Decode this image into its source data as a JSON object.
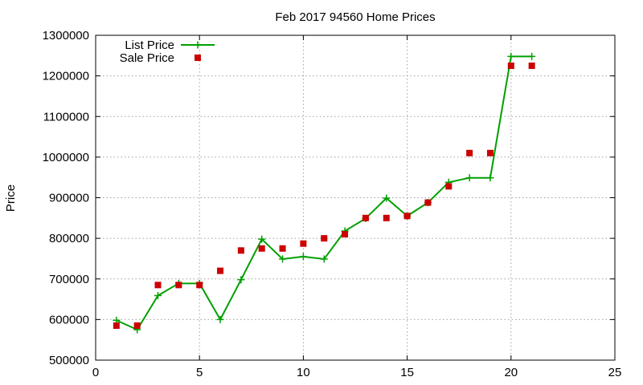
{
  "chart_data": {
    "type": "line",
    "title": "Feb 2017 94560 Home Prices",
    "xlabel": "",
    "ylabel": "Price",
    "xlim": [
      0,
      25
    ],
    "ylim": [
      500000,
      1300000
    ],
    "xticks": [
      0,
      5,
      10,
      15,
      20,
      25
    ],
    "yticks": [
      500000,
      600000,
      700000,
      800000,
      900000,
      1000000,
      1100000,
      1200000,
      1300000
    ],
    "grid": true,
    "legend_position": "top-left",
    "series": [
      {
        "name": "List Price",
        "kind": "line-points",
        "color": "#00a000",
        "marker": "plus",
        "points": [
          [
            1,
            598000
          ],
          [
            2,
            575000
          ],
          [
            3,
            659000
          ],
          [
            4,
            689000
          ],
          [
            5,
            689000
          ],
          [
            6,
            600000
          ],
          [
            7,
            698000
          ],
          [
            8,
            798000
          ],
          [
            9,
            749000
          ],
          [
            10,
            755000
          ],
          [
            11,
            749000
          ],
          [
            12,
            818000
          ],
          [
            13,
            849000
          ],
          [
            14,
            899000
          ],
          [
            15,
            855000
          ],
          [
            16,
            888000
          ],
          [
            17,
            938000
          ],
          [
            18,
            949000
          ],
          [
            19,
            949000
          ],
          [
            20,
            1248000
          ],
          [
            21,
            1248000
          ]
        ]
      },
      {
        "name": "Sale Price",
        "kind": "points",
        "color": "#cc0000",
        "marker": "square",
        "points": [
          [
            1,
            585000
          ],
          [
            2,
            585000
          ],
          [
            3,
            685000
          ],
          [
            4,
            685000
          ],
          [
            5,
            685000
          ],
          [
            6,
            720000
          ],
          [
            7,
            770000
          ],
          [
            8,
            775000
          ],
          [
            9,
            775000
          ],
          [
            10,
            787000
          ],
          [
            11,
            800000
          ],
          [
            12,
            810000
          ],
          [
            13,
            850000
          ],
          [
            14,
            850000
          ],
          [
            15,
            855000
          ],
          [
            16,
            888000
          ],
          [
            17,
            928000
          ],
          [
            18,
            1010000
          ],
          [
            19,
            1010000
          ],
          [
            20,
            1225000
          ],
          [
            21,
            1225000
          ]
        ]
      }
    ]
  }
}
